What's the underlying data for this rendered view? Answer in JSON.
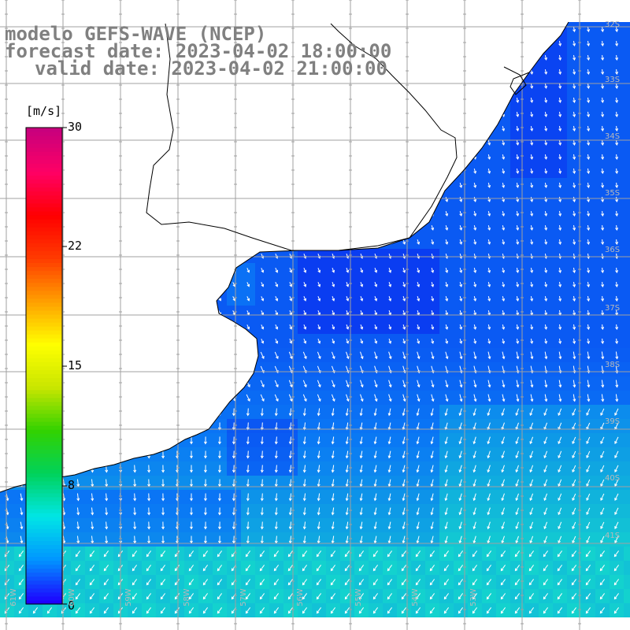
{
  "title": {
    "line1": "modelo GEFS-WAVE (NCEP)",
    "line2": "forecast date: 2023-04-02 18:00:00",
    "line3": "valid date: 2023-04-02 21:00:00"
  },
  "colorbar": {
    "unit": "[m/s]",
    "ticks": [
      "30",
      "22",
      "15",
      "8",
      "0"
    ],
    "ramp_colors": [
      "#1e00ff",
      "#0096ff",
      "#00e6e6",
      "#00d25a",
      "#32d200",
      "#c8e600",
      "#ffff00",
      "#ffa000",
      "#ff3c00",
      "#ff0000",
      "#ff0064",
      "#c8007d"
    ]
  },
  "axes": {
    "lat_labels": [
      "32S",
      "33S",
      "34S",
      "35S",
      "36S",
      "37S",
      "38S",
      "39S",
      "40S",
      "41S"
    ],
    "lon_labels": [
      "61W",
      "60W",
      "59W",
      "58W",
      "57W",
      "56W",
      "55W",
      "54W",
      "53W"
    ]
  },
  "map": {
    "land_color": "#ffffff",
    "grid_color": "#a0a0a0",
    "coast_color": "#000000",
    "arrow_color": "#ffffff",
    "field_low": "#0a2ef0",
    "field_mid": "#0a78f5",
    "field_high": "#15e1c8"
  }
}
